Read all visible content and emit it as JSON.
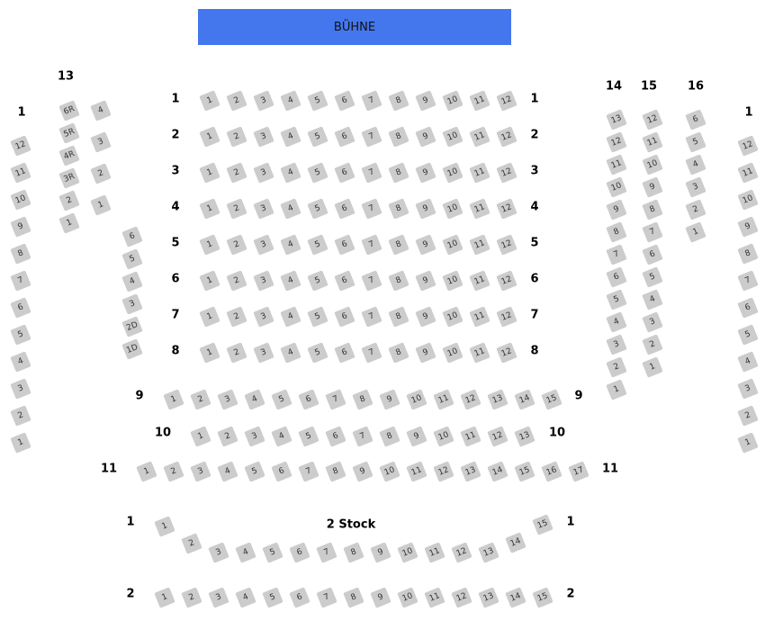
{
  "stage_label": "BÜHNE",
  "floor_label": "2 Stock",
  "colors": {
    "stage": "#4477ee",
    "seat": "#cccccc"
  },
  "main_rows": [
    {
      "row": "1",
      "seats": [
        "1",
        "2",
        "3",
        "4",
        "5",
        "6",
        "7",
        "8",
        "9",
        "10",
        "11",
        "12"
      ]
    },
    {
      "row": "2",
      "seats": [
        "1",
        "2",
        "3",
        "4",
        "5",
        "6",
        "7",
        "8",
        "9",
        "10",
        "11",
        "12"
      ]
    },
    {
      "row": "3",
      "seats": [
        "1",
        "2",
        "3",
        "4",
        "5",
        "6",
        "7",
        "8",
        "9",
        "10",
        "11",
        "12"
      ]
    },
    {
      "row": "4",
      "seats": [
        "1",
        "2",
        "3",
        "4",
        "5",
        "6",
        "7",
        "8",
        "9",
        "10",
        "11",
        "12"
      ]
    },
    {
      "row": "5",
      "seats": [
        "1",
        "2",
        "3",
        "4",
        "5",
        "6",
        "7",
        "8",
        "9",
        "10",
        "11",
        "12"
      ]
    },
    {
      "row": "6",
      "seats": [
        "1",
        "2",
        "3",
        "4",
        "5",
        "6",
        "7",
        "8",
        "9",
        "10",
        "11",
        "12"
      ]
    },
    {
      "row": "7",
      "seats": [
        "1",
        "2",
        "3",
        "4",
        "5",
        "6",
        "7",
        "8",
        "9",
        "10",
        "11",
        "12"
      ]
    },
    {
      "row": "8",
      "seats": [
        "1",
        "2",
        "3",
        "4",
        "5",
        "6",
        "7",
        "8",
        "9",
        "10",
        "11",
        "12"
      ]
    },
    {
      "row": "9",
      "seats": [
        "1",
        "2",
        "3",
        "4",
        "5",
        "6",
        "7",
        "8",
        "9",
        "10",
        "11",
        "12",
        "13",
        "14",
        "15"
      ]
    },
    {
      "row": "10",
      "seats": [
        "1",
        "2",
        "3",
        "4",
        "5",
        "6",
        "7",
        "8",
        "9",
        "10",
        "11",
        "12",
        "13"
      ]
    },
    {
      "row": "11",
      "seats": [
        "1",
        "2",
        "3",
        "4",
        "5",
        "6",
        "7",
        "8",
        "9",
        "10",
        "11",
        "12",
        "13",
        "14",
        "15",
        "16",
        "17"
      ]
    }
  ],
  "balcony_rows": [
    {
      "row": "1",
      "seats": [
        "1",
        "2",
        "3",
        "4",
        "5",
        "6",
        "7",
        "8",
        "9",
        "10",
        "11",
        "12",
        "13",
        "14",
        "15"
      ]
    },
    {
      "row": "2",
      "seats": [
        "1",
        "2",
        "3",
        "4",
        "5",
        "6",
        "7",
        "8",
        "9",
        "10",
        "11",
        "12",
        "13",
        "14",
        "15"
      ]
    }
  ],
  "side_columns": [
    {
      "label": "1",
      "seats": [
        "12",
        "11",
        "10",
        "9",
        "8",
        "7",
        "6",
        "5",
        "4",
        "3",
        "2",
        "1"
      ]
    },
    {
      "label": "13",
      "seats": [
        "6R",
        "5R",
        "4R",
        "3R",
        "2",
        "1"
      ]
    },
    {
      "label": "",
      "seats": [
        "4",
        "3",
        "2",
        "1"
      ]
    },
    {
      "label": "",
      "seats": [
        "6",
        "5",
        "4",
        "3",
        "2D",
        "1D"
      ]
    },
    {
      "label": "14",
      "seats": [
        "13",
        "12",
        "11",
        "10",
        "9",
        "8",
        "7",
        "6",
        "5",
        "4",
        "3",
        "2",
        "1"
      ]
    },
    {
      "label": "15",
      "seats": [
        "12",
        "11",
        "10",
        "9",
        "8",
        "7",
        "6",
        "5",
        "4",
        "3",
        "2",
        "1"
      ]
    },
    {
      "label": "16",
      "seats": [
        "6",
        "5",
        "4",
        "3",
        "2",
        "1"
      ]
    },
    {
      "label": "1",
      "seats": [
        "12",
        "11",
        "10",
        "9",
        "8",
        "7",
        "6",
        "5",
        "4",
        "3",
        "2",
        "1"
      ]
    }
  ]
}
